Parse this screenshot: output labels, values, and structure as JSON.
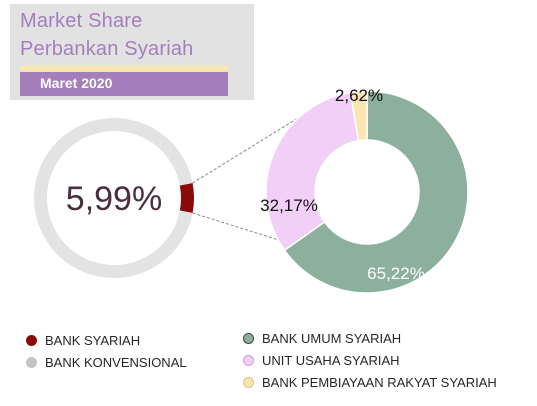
{
  "title": {
    "line1": "Market Share",
    "line2": "Perbankan Syariah",
    "subtitle": "Maret 2020"
  },
  "colors": {
    "title": "#a47fbc",
    "title_accent": "#fce6a9",
    "bank_syariah": "#8b0a0a",
    "bank_konvensional": "#e3e3e3",
    "bank_umum_syariah": "#8db09e",
    "unit_usaha_syariah": "#f2cff7",
    "bank_pembiayaan_rakyat_syariah": "#fbe5b3",
    "connector": "#888888"
  },
  "chart_data": [
    {
      "type": "pie",
      "variant": "donut",
      "labels": [
        "BANK SYARIAH",
        "BANK KONVENSIONAL"
      ],
      "values": [
        5.99,
        94.01
      ],
      "data_labels": [
        "5,99%"
      ],
      "center_label": "5,99%",
      "unit": "%"
    },
    {
      "type": "pie",
      "variant": "donut",
      "labels": [
        "BANK UMUM SYARIAH",
        "UNIT USAHA SYARIAH",
        "BANK PEMBIAYAAN RAKYAT SYARIAH"
      ],
      "values": [
        65.22,
        32.17,
        2.62
      ],
      "data_labels": [
        "65,22%",
        "32,17%",
        "2,62%"
      ],
      "unit": "%"
    }
  ],
  "legend_left": [
    {
      "label": "BANK SYARIAH",
      "color": "#8b0a0a"
    },
    {
      "label": "BANK KONVENSIONAL",
      "color": "#c4c4c4"
    }
  ],
  "legend_right": [
    {
      "label": "BANK UMUM SYARIAH",
      "color": "#8db09e",
      "border": "#444444"
    },
    {
      "label": "UNIT USAHA SYARIAH",
      "color": "#f2cff7",
      "border": "#cf9fd6"
    },
    {
      "label": "BANK PEMBIAYAAN RAKYAT SYARIAH",
      "color": "#fbe5b3",
      "border": "#d9c085"
    }
  ]
}
